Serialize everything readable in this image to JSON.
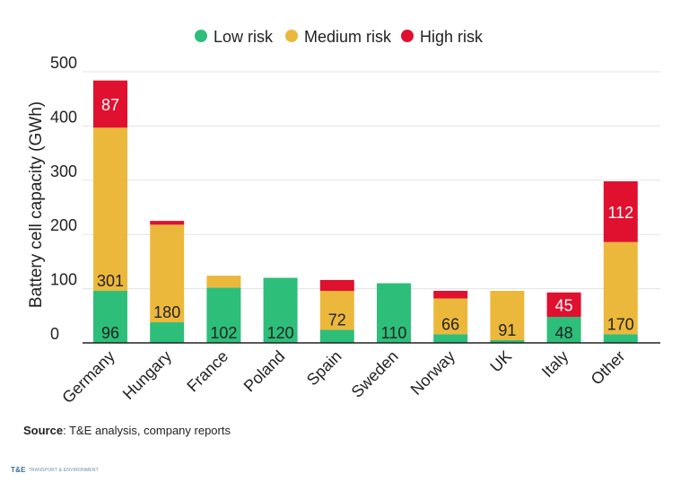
{
  "chart_data": {
    "type": "bar",
    "stacked": true,
    "categories": [
      "Germany",
      "Hungary",
      "France",
      "Poland",
      "Spain",
      "Sweden",
      "Norway",
      "UK",
      "Italy",
      "Other"
    ],
    "series": [
      {
        "name": "Low risk",
        "color": "#2dbe7a",
        "values": [
          96,
          38,
          102,
          120,
          24,
          110,
          16,
          5,
          48,
          16
        ]
      },
      {
        "name": "Medium risk",
        "color": "#ecb83c",
        "values": [
          301,
          180,
          22,
          0,
          72,
          0,
          66,
          91,
          0,
          170
        ]
      },
      {
        "name": "High risk",
        "color": "#e0102f",
        "values": [
          87,
          7,
          0,
          0,
          20,
          0,
          14,
          0,
          45,
          112
        ]
      }
    ],
    "data_labels": [
      {
        "category": "Germany",
        "series": "Low risk",
        "text": "96"
      },
      {
        "category": "Germany",
        "series": "Medium risk",
        "text": "301"
      },
      {
        "category": "Germany",
        "series": "High risk",
        "text": "87"
      },
      {
        "category": "Hungary",
        "series": "Medium risk",
        "text": "180"
      },
      {
        "category": "France",
        "series": "Low risk",
        "text": "102"
      },
      {
        "category": "Poland",
        "series": "Low risk",
        "text": "120"
      },
      {
        "category": "Spain",
        "series": "Medium risk",
        "text": "72"
      },
      {
        "category": "Sweden",
        "series": "Low risk",
        "text": "110"
      },
      {
        "category": "Norway",
        "series": "Medium risk",
        "text": "66"
      },
      {
        "category": "UK",
        "series": "Medium risk",
        "text": "91"
      },
      {
        "category": "Italy",
        "series": "Low risk",
        "text": "48"
      },
      {
        "category": "Italy",
        "series": "High risk",
        "text": "45"
      },
      {
        "category": "Other",
        "series": "Medium risk",
        "text": "170"
      },
      {
        "category": "Other",
        "series": "High risk",
        "text": "112"
      }
    ],
    "ylabel": "Battery cell capacity (GWh)",
    "ylim": [
      0,
      500
    ],
    "yticks": [
      0,
      100,
      200,
      300,
      400,
      500
    ],
    "grid": true,
    "legend": "top-center"
  },
  "source": {
    "label": "Source",
    "text": ": T&E analysis, company reports"
  },
  "logo": {
    "name": "TRANSPORT & ENVIRONMENT"
  }
}
